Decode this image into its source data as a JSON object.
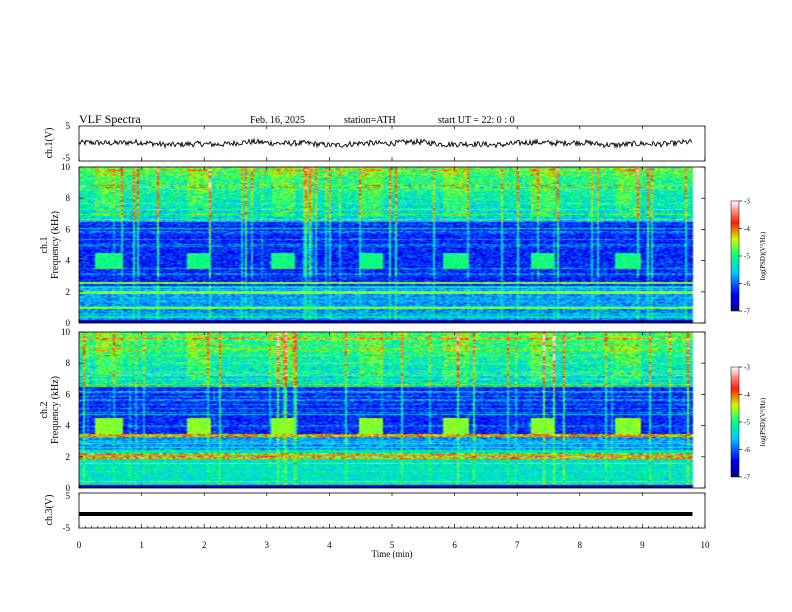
{
  "chart_data": {
    "type": "heatmap",
    "title": "VLF  Spectra",
    "date": "Feb. 16, 2025",
    "station": "station=ATH",
    "start_ut": "start  UT  =   22: 0  : 0",
    "xlabel": "Time  (min)",
    "xlim": [
      0,
      10
    ],
    "x_ticks": [
      "0",
      "1",
      "2",
      "3",
      "4",
      "5",
      "6",
      "7",
      "8",
      "9",
      "10"
    ],
    "data_end_min": 9.8,
    "ch1_waveform": {
      "ylabel": "ch.1(V)",
      "ylim": [
        -5,
        5
      ],
      "y_ticks": [
        "5",
        "-5"
      ],
      "mean_level_v": 0.0,
      "noise_amplitude_v": 0.8
    },
    "ch3_waveform": {
      "ylabel": "ch.3(V)",
      "ylim": [
        -5,
        5
      ],
      "y_ticks": [
        "5",
        "-5"
      ],
      "mean_level_v": -1.0
    },
    "spectrograms": [
      {
        "channel": "ch.1",
        "ylabel": "ch.1",
        "ylabel2": "Frequency  (kHz)",
        "ylim": [
          0,
          10
        ],
        "y_ticks": [
          "0",
          "2",
          "4",
          "6",
          "8",
          "10"
        ],
        "colorbar": {
          "label": "log(PSD)(V²/Hz)",
          "range": [
            -7,
            -3
          ],
          "ticks": [
            "-3",
            "-4",
            "-5",
            "-6",
            "-7"
          ]
        },
        "bursts_min": [
          [
            0.25,
            0.7
          ],
          [
            1.7,
            2.1
          ],
          [
            3.05,
            3.45
          ],
          [
            4.45,
            4.85
          ],
          [
            5.8,
            6.2
          ],
          [
            7.2,
            7.6
          ],
          [
            8.55,
            8.95
          ]
        ],
        "burst_band_khz": [
          3.5,
          4.5
        ],
        "strong_lines_khz": [
          1.0,
          2.0,
          2.6
        ]
      },
      {
        "channel": "ch.2",
        "ylabel": "ch.2",
        "ylabel2": "Frequency  (kHz)",
        "ylim": [
          0,
          10
        ],
        "y_ticks": [
          "0",
          "2",
          "4",
          "6",
          "8",
          "10"
        ],
        "colorbar": {
          "label": "log(PSD)(V²/Hz)",
          "range": [
            -7,
            -3
          ],
          "ticks": [
            "-3",
            "-4",
            "-5",
            "-6",
            "-7"
          ]
        },
        "bursts_min": [
          [
            0.25,
            0.7
          ],
          [
            1.7,
            2.1
          ],
          [
            3.05,
            3.45
          ],
          [
            4.45,
            4.85
          ],
          [
            5.8,
            6.2
          ],
          [
            7.2,
            7.6
          ],
          [
            8.55,
            8.95
          ]
        ],
        "burst_band_khz": [
          3.5,
          4.5
        ],
        "strong_lines_khz": [
          2.0,
          2.2,
          3.4
        ]
      }
    ]
  }
}
